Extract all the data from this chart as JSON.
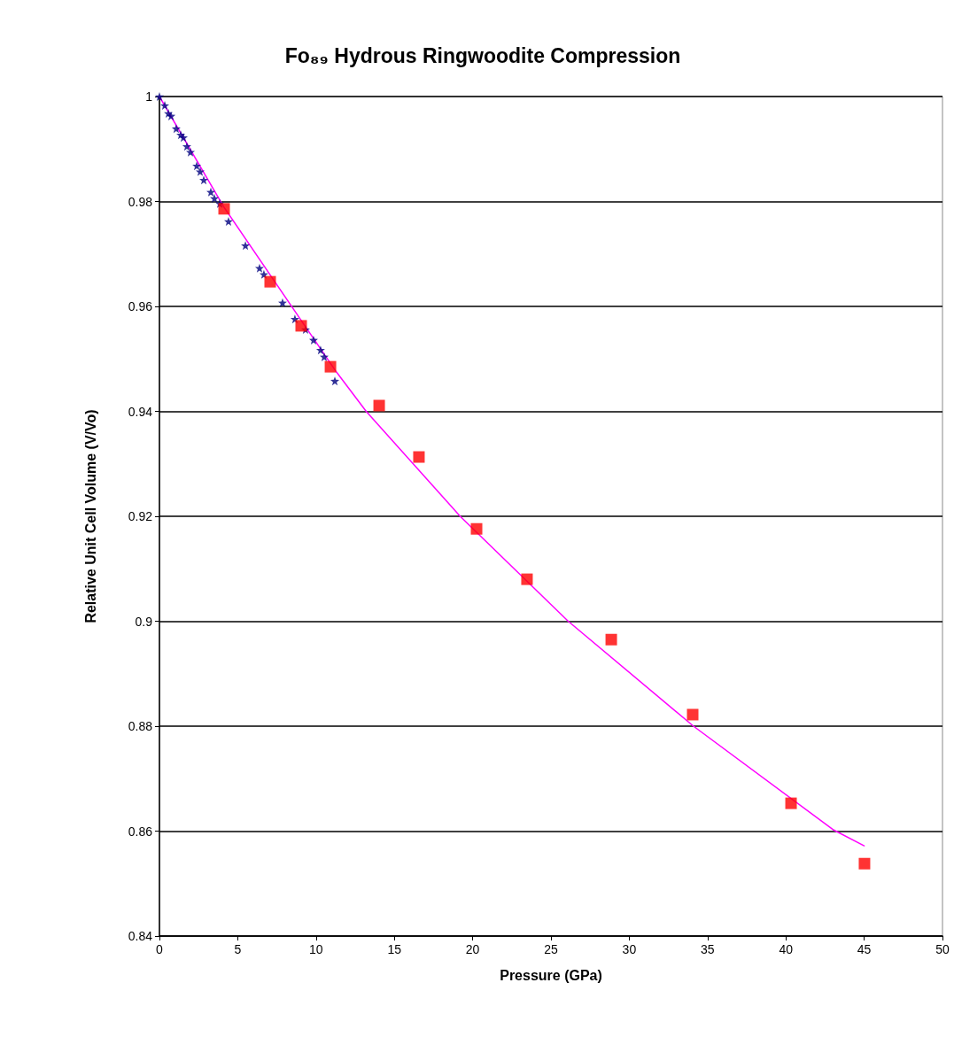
{
  "chart_data": {
    "type": "scatter",
    "title": "Fo₈₉ Hydrous Ringwoodite Compression",
    "xlabel": "Pressure (GPa)",
    "ylabel": "Relative Unit Cell Volume (V/Vo)",
    "xlim": [
      0,
      50
    ],
    "xticks": [
      0,
      5,
      10,
      15,
      20,
      25,
      30,
      35,
      40,
      45,
      50
    ],
    "ylim": [
      0.84,
      1
    ],
    "yticks": [
      0.84,
      0.86,
      0.88,
      0.9,
      0.92,
      0.94,
      0.96,
      0.98,
      1
    ],
    "grid": "y",
    "series": [
      {
        "type": "line",
        "marker": "none",
        "line_style": "solid",
        "color": "#ff00ff",
        "x": [
          0,
          4.1,
          11.3,
          13.2,
          19.2,
          26.1,
          34.1,
          43.0,
          45.0
        ],
        "values": [
          1,
          0.979,
          0.9475,
          0.94,
          0.92,
          0.9,
          0.88,
          0.8603,
          0.8572
        ]
      },
      {
        "marker": "star",
        "color": "#000080",
        "x": [
          0,
          0.34,
          0.57,
          0.74,
          1.07,
          1.36,
          1.53,
          1.75,
          1.98,
          2.38,
          2.6,
          2.83,
          3.28,
          3.51,
          3.85,
          4.41,
          5.49,
          6.39,
          6.67,
          7.86,
          8.65,
          9.33,
          9.84,
          10.29,
          10.52,
          11.2
        ],
        "values": [
          1,
          0.9983,
          0.9968,
          0.9963,
          0.9939,
          0.9927,
          0.9922,
          0.9905,
          0.9894,
          0.9868,
          0.9857,
          0.9841,
          0.9818,
          0.9806,
          0.9796,
          0.9762,
          0.9716,
          0.9673,
          0.9661,
          0.9607,
          0.9576,
          0.9556,
          0.9536,
          0.9517,
          0.9504,
          0.9458
        ]
      },
      {
        "marker": "square",
        "color": "#ff0000",
        "x": [
          4.13,
          7.07,
          9.05,
          10.92,
          14.03,
          16.57,
          20.25,
          23.47,
          28.85,
          34.05,
          40.33,
          45.02
        ],
        "values": [
          0.9786,
          0.9647,
          0.9563,
          0.9485,
          0.9411,
          0.9313,
          0.9176,
          0.908,
          0.8965,
          0.8822,
          0.8653,
          0.8538
        ]
      }
    ]
  }
}
